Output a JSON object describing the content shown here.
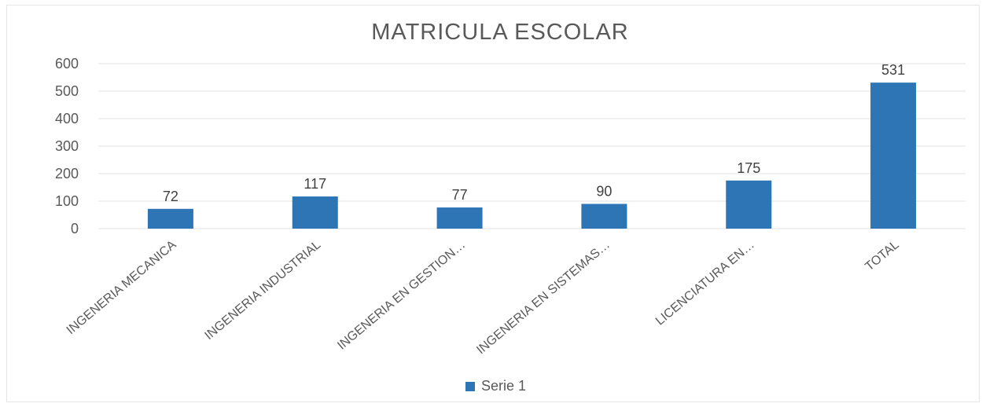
{
  "chart_data": {
    "type": "bar",
    "title": "MATRICULA ESCOLAR",
    "xlabel": "",
    "ylabel": "",
    "categories": [
      "INGENERIA MECANICA",
      "INGENERIA INDUSTRIAL",
      "INGENERIA EN GESTION…",
      "INGENERIA EN SISTEMAS…",
      "LICENCIATURA EN…",
      "TOTAL"
    ],
    "series": [
      {
        "name": "Serie 1",
        "values": [
          72,
          117,
          77,
          90,
          175,
          531
        ],
        "color": "#2e75b6"
      }
    ],
    "data_labels": [
      "72",
      "117",
      "77",
      "90",
      "175",
      "531"
    ],
    "ylim": [
      0,
      600
    ],
    "yticks": [
      0,
      100,
      200,
      300,
      400,
      500,
      600
    ],
    "grid": true,
    "legend_position": "bottom"
  }
}
